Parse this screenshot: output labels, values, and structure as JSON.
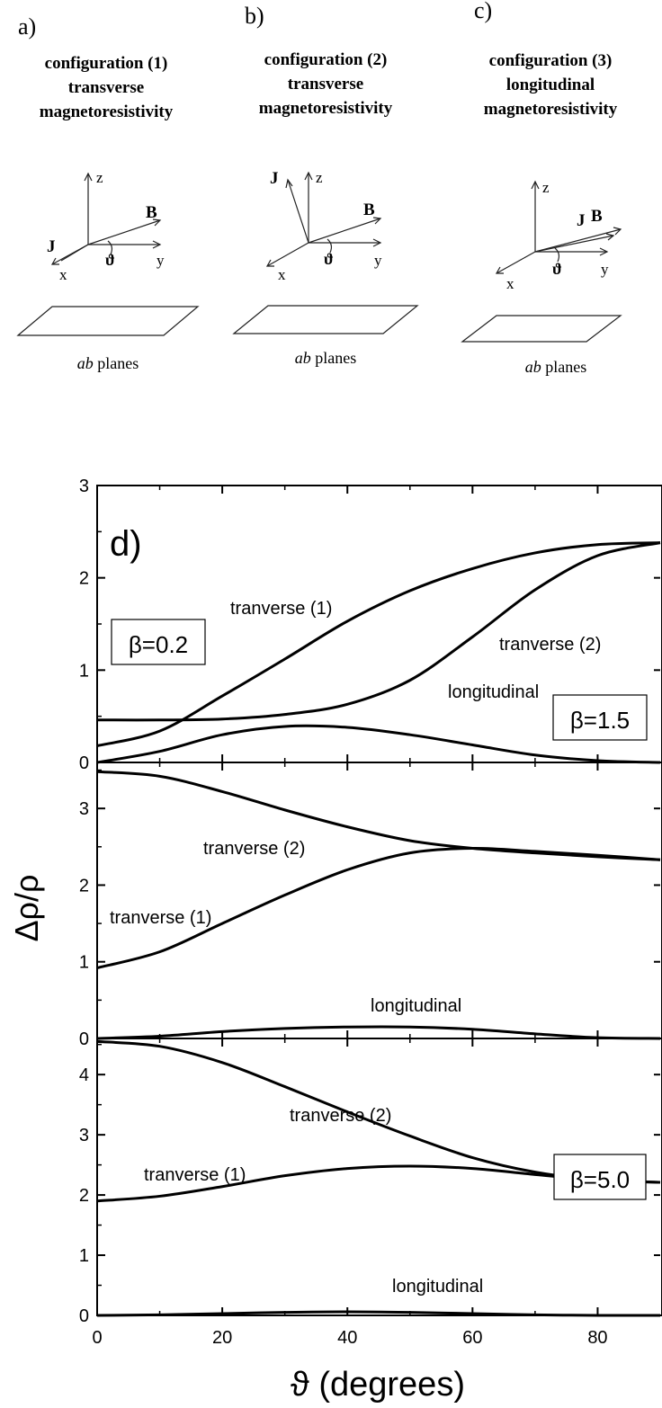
{
  "configs": [
    {
      "letter": "a)",
      "lines": [
        "configuration (1)",
        "transverse",
        "magnetoresistivity"
      ],
      "planes_em": "ab",
      "planes_rest": " planes",
      "axes": [
        "z",
        "y",
        "x"
      ],
      "vectors": [
        "B",
        "J"
      ],
      "angle": "ϑ"
    },
    {
      "letter": "b)",
      "lines": [
        "configuration (2)",
        "transverse",
        "magnetoresistivity"
      ],
      "planes_em": "ab",
      "planes_rest": " planes",
      "axes": [
        "z",
        "y",
        "x"
      ],
      "vectors": [
        "B",
        "J"
      ],
      "angle": "ϑ"
    },
    {
      "letter": "c)",
      "lines": [
        "configuration (3)",
        "longitudinal",
        "magnetoresistivity"
      ],
      "planes_em": "ab",
      "planes_rest": " planes",
      "axes": [
        "z",
        "y",
        "x"
      ],
      "vectors": [
        "B",
        "J"
      ],
      "angle": "ϑ"
    }
  ],
  "chart_data": {
    "type": "line",
    "panel_label": "d)",
    "xlabel": "ϑ (degrees)",
    "ylabel": "Δρ/ρ",
    "xlim": [
      0,
      90
    ],
    "x_ticks": [
      0,
      20,
      40,
      60,
      80
    ],
    "panels": [
      {
        "beta_label": "β=0.2",
        "ylim": [
          0,
          3
        ],
        "y_ticks": [
          0,
          1,
          2,
          3
        ],
        "series": [
          {
            "name": "tranverse (1)",
            "x": [
              0,
              10,
              20,
              30,
              40,
              50,
              60,
              70,
              80,
              90
            ],
            "values": [
              0.18,
              0.34,
              0.72,
              1.12,
              1.53,
              1.86,
              2.1,
              2.27,
              2.36,
              2.38
            ]
          },
          {
            "name": "tranverse (2)",
            "x": [
              0,
              10,
              20,
              30,
              40,
              50,
              60,
              70,
              80,
              90
            ],
            "values": [
              0.46,
              0.46,
              0.47,
              0.52,
              0.63,
              0.89,
              1.36,
              1.87,
              2.24,
              2.38
            ]
          },
          {
            "name": "longitudinal",
            "x": [
              0,
              10,
              20,
              30,
              40,
              50,
              60,
              70,
              80,
              90
            ],
            "values": [
              0.0,
              0.12,
              0.3,
              0.39,
              0.38,
              0.3,
              0.19,
              0.08,
              0.02,
              0.0
            ]
          }
        ]
      },
      {
        "beta_label": "β=1.5",
        "ylim": [
          0,
          3.6
        ],
        "y_ticks": [
          0,
          1,
          2,
          3
        ],
        "series": [
          {
            "name": "tranverse (2)",
            "x": [
              0,
              10,
              20,
              30,
              40,
              50,
              60,
              70,
              80,
              90
            ],
            "values": [
              3.48,
              3.42,
              3.22,
              2.98,
              2.76,
              2.58,
              2.48,
              2.42,
              2.37,
              2.33
            ]
          },
          {
            "name": "tranverse (1)",
            "x": [
              0,
              10,
              20,
              30,
              40,
              50,
              60,
              70,
              80,
              90
            ],
            "values": [
              0.92,
              1.13,
              1.5,
              1.87,
              2.2,
              2.42,
              2.48,
              2.44,
              2.39,
              2.33
            ]
          },
          {
            "name": "longitudinal",
            "x": [
              0,
              10,
              20,
              30,
              40,
              50,
              60,
              70,
              80,
              90
            ],
            "values": [
              0.0,
              0.03,
              0.09,
              0.13,
              0.15,
              0.15,
              0.12,
              0.06,
              0.01,
              0.0
            ]
          }
        ]
      },
      {
        "beta_label": "β=5.0",
        "ylim": [
          0,
          4.6
        ],
        "y_ticks": [
          0,
          1,
          2,
          3,
          4
        ],
        "series": [
          {
            "name": "tranverse (2)",
            "x": [
              0,
              10,
              20,
              30,
              40,
              50,
              60,
              70,
              80,
              90
            ],
            "values": [
              4.55,
              4.47,
              4.2,
              3.8,
              3.38,
              2.98,
              2.62,
              2.38,
              2.25,
              2.21
            ]
          },
          {
            "name": "tranverse (1)",
            "x": [
              0,
              10,
              20,
              30,
              40,
              50,
              60,
              70,
              80,
              90
            ],
            "values": [
              1.9,
              1.98,
              2.14,
              2.32,
              2.44,
              2.48,
              2.44,
              2.34,
              2.25,
              2.21
            ]
          },
          {
            "name": "longitudinal",
            "x": [
              0,
              10,
              20,
              30,
              40,
              50,
              60,
              70,
              80,
              90
            ],
            "values": [
              0.0,
              0.01,
              0.03,
              0.05,
              0.06,
              0.05,
              0.03,
              0.01,
              0.0,
              0.0
            ]
          }
        ]
      }
    ]
  }
}
